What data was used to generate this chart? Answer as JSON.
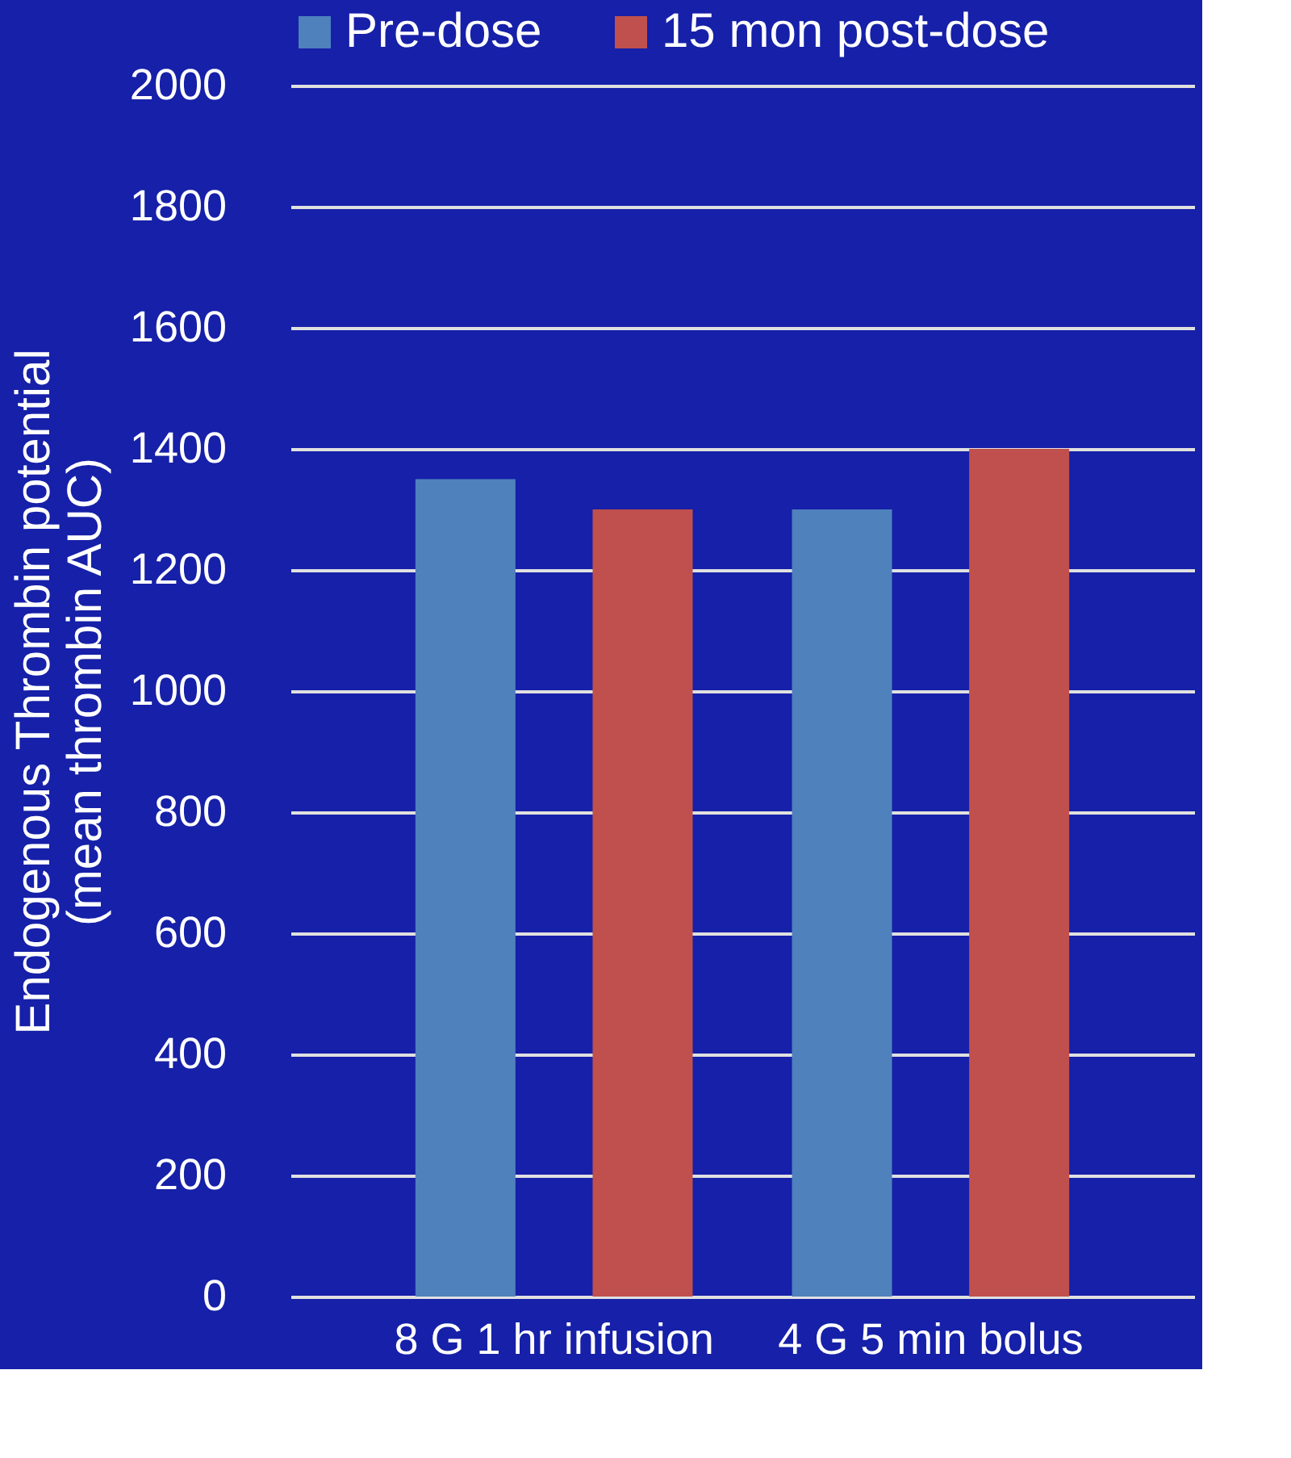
{
  "chart_data": {
    "type": "bar",
    "ylabel": "Endogenous Thrombin potential\n(mean thrombin AUC)",
    "categories": [
      "8 G 1 hr infusion",
      "4 G 5 min bolus"
    ],
    "series": [
      {
        "name": "Pre-dose",
        "color": "#4f81bd",
        "values": [
          1350,
          1300
        ]
      },
      {
        "name": "15 mon post-dose",
        "color": "#c0504d",
        "values": [
          1300,
          1400
        ]
      }
    ],
    "ylim": [
      0,
      2000
    ],
    "yticks": [
      0,
      200,
      400,
      600,
      800,
      1000,
      1200,
      1400,
      1600,
      1800,
      2000
    ],
    "grid": "y",
    "legend": "top"
  }
}
